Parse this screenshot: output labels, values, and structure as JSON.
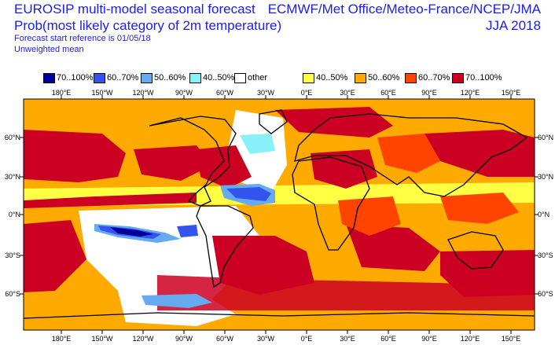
{
  "header": {
    "title_line1": "EUROSIP multi-model seasonal forecast",
    "title_line2": "Prob(most likely category of 2m temperature)",
    "forecast_ref": "Forecast start reference is 01/05/18",
    "weighting": "Unweighted mean",
    "centres": "ECMWF/Met Office/Meteo-France/NCEP/JMA",
    "season": "JJA 2018"
  },
  "legend": [
    {
      "label": "70..100%",
      "color": "#000099"
    },
    {
      "label": "60..70%",
      "color": "#3355ee"
    },
    {
      "label": "50..60%",
      "color": "#66aaf0"
    },
    {
      "label": "40..50%",
      "color": "#88f0f8"
    },
    {
      "label": "other",
      "color": "#ffffff"
    },
    {
      "label": "40..50%",
      "color": "#ffff44"
    },
    {
      "label": "50..60%",
      "color": "#ffaa00"
    },
    {
      "label": "60..70%",
      "color": "#ff4400"
    },
    {
      "label": "70..100%",
      "color": "#cc0022"
    }
  ],
  "map": {
    "lon_labels": [
      "180°E",
      "150°W",
      "120°W",
      "90°W",
      "60°W",
      "30°W",
      "0°E",
      "30°E",
      "60°E",
      "90°E",
      "120°E",
      "150°E"
    ],
    "lat_labels": [
      "60°N",
      "30°N",
      "0°N",
      "30°S",
      "60°S"
    ]
  }
}
